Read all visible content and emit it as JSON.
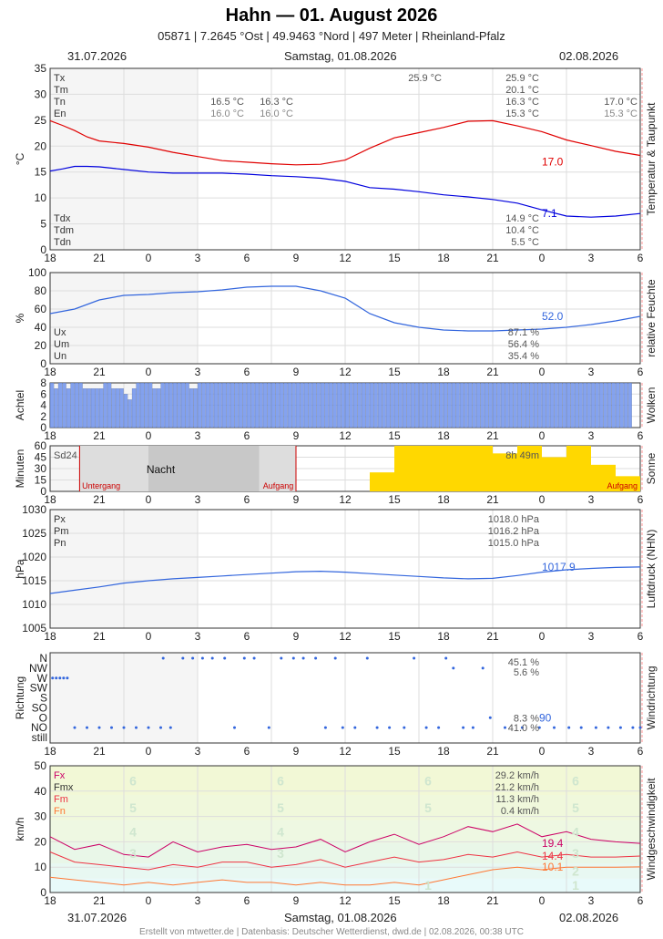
{
  "header": {
    "title": "Hahn  —  01. August 2026",
    "subtitle": "05871  |  7.2645 °Ost  |  49.9463 °Nord  |  497 Meter  |  Rheinland-Pfalz",
    "date_left": "31.07.2026",
    "date_center": "Samstag, 01.08.2026",
    "date_right": "02.08.2026"
  },
  "footer": "Erstellt von mtwetter.de | Datenbasis: Deutscher Wetterdienst, dwd.de | 02.08.2026, 00:38 UTC",
  "colors": {
    "temp": "#e00000",
    "dew": "#0000dd",
    "hum": "#3366dd",
    "cloud": "#7799ee",
    "sun": "#ffd800",
    "gust": "#cc0066",
    "wind": "#ee3344",
    "windmin": "#ff7733",
    "night": "#cccccc"
  },
  "chart_data": [
    {
      "id": "temperature",
      "type": "line",
      "ylabel": "°C",
      "side_label": "Temperatur & Taupunkt",
      "ylim": [
        0,
        35
      ],
      "yticks": [
        0,
        5,
        10,
        15,
        20,
        25,
        30,
        35
      ],
      "xlim": [
        18,
        42
      ],
      "xtick_labels": [
        "18",
        "21",
        "0",
        "3",
        "6",
        "9",
        "12",
        "15",
        "18",
        "21",
        "0",
        "3",
        "6"
      ],
      "series": [
        {
          "name": "temp",
          "x": [
            18,
            18.5,
            19,
            19.5,
            20,
            21,
            22,
            23,
            24,
            25,
            26,
            27,
            28,
            29,
            30,
            31,
            32,
            33,
            34,
            35,
            36,
            37,
            38,
            39,
            40,
            41,
            42
          ],
          "y": [
            24.9,
            24.0,
            23.0,
            21.8,
            21.0,
            20.5,
            19.8,
            18.8,
            18.0,
            17.2,
            16.9,
            16.6,
            16.4,
            16.5,
            17.3,
            19.6,
            21.6,
            22.6,
            23.6,
            24.8,
            24.9,
            23.9,
            22.8,
            21.2,
            20.1,
            19.0,
            18.2
          ]
        },
        {
          "name": "dewpoint",
          "x": [
            18,
            18.5,
            19,
            19.5,
            20,
            21,
            22,
            23,
            24,
            25,
            26,
            27,
            28,
            29,
            30,
            31,
            32,
            33,
            34,
            35,
            36,
            37,
            38,
            39,
            40,
            41,
            42
          ],
          "y": [
            15.2,
            15.6,
            16.1,
            16.1,
            16.0,
            15.5,
            15.0,
            14.8,
            14.8,
            14.8,
            14.6,
            14.3,
            14.1,
            13.8,
            13.2,
            12.0,
            11.7,
            11.2,
            10.6,
            10.2,
            9.7,
            9.0,
            7.7,
            6.5,
            6.3,
            6.5,
            7.0
          ]
        }
      ],
      "labels_left": [
        "Tx",
        "Tm",
        "Tn",
        "En"
      ],
      "labels_left_bottom": [
        "Tdx",
        "Tdm",
        "Tdn"
      ],
      "stats_right": [
        "25.9 °C",
        "20.1 °C",
        "16.3 °C",
        "15.3 °C"
      ],
      "stats_right_dew": [
        "14.9 °C",
        "10.4 °C",
        "5.5 °C"
      ],
      "night_min_values": [
        "16.5 °C",
        "16.0 °C",
        "16.3 °C",
        "16.0 °C"
      ],
      "next_values": [
        "17.0 °C",
        "15.3 °C"
      ],
      "max_marker": "25.9 °C",
      "current_temp": "17.0",
      "current_dew": "7.1"
    },
    {
      "id": "humidity",
      "type": "line",
      "ylabel": "%",
      "side_label": "relative Feuchte",
      "ylim": [
        0,
        100
      ],
      "yticks": [
        0,
        20,
        40,
        60,
        80,
        100
      ],
      "xlim": [
        18,
        42
      ],
      "series": [
        {
          "name": "humidity",
          "x": [
            18,
            19,
            20,
            21,
            22,
            23,
            24,
            25,
            26,
            27,
            28,
            29,
            30,
            31,
            32,
            33,
            34,
            35,
            36,
            37,
            38,
            39,
            40,
            41,
            42
          ],
          "y": [
            55,
            60,
            70,
            75,
            76,
            78,
            79,
            81,
            84,
            85,
            85,
            80,
            72,
            55,
            45,
            40,
            37,
            36,
            36,
            37,
            38,
            40,
            43,
            47,
            52
          ]
        }
      ],
      "labels_left": [
        "Ux",
        "Um",
        "Un"
      ],
      "stats_right": [
        "87.1 %",
        "56.4 %",
        "35.4 %"
      ],
      "current": "52.0"
    },
    {
      "id": "clouds",
      "type": "bar",
      "ylabel": "Achtel",
      "side_label": "Wolken",
      "ylim": [
        0,
        8
      ],
      "yticks": [
        0,
        2,
        4,
        6,
        8
      ],
      "xlim": [
        18,
        42
      ],
      "step": 0.1667,
      "x_start": 18,
      "values": [
        8,
        7,
        8,
        8,
        7,
        8,
        8,
        8,
        7,
        7,
        7,
        7,
        7,
        8,
        8,
        7,
        7,
        7,
        6,
        5,
        7,
        8,
        8,
        8,
        8,
        7,
        7,
        8,
        8,
        8,
        8,
        8,
        8,
        8,
        7,
        7,
        8,
        8,
        8,
        8,
        8,
        8,
        8,
        8,
        8,
        8,
        8,
        8,
        8,
        8,
        8,
        8,
        8,
        8,
        8,
        8,
        8,
        8,
        8,
        8,
        8,
        8,
        8,
        8,
        8,
        8,
        8,
        8,
        8,
        8,
        8,
        8,
        8,
        8,
        8,
        8,
        8,
        8,
        8,
        8,
        8,
        8,
        8,
        8,
        8,
        8,
        8,
        8,
        8,
        8,
        8,
        8,
        8,
        8,
        8,
        8,
        8,
        8,
        8,
        8,
        8,
        8,
        8,
        8,
        8,
        8,
        8,
        8,
        8,
        8,
        8,
        8,
        8,
        8,
        8,
        8,
        8,
        8,
        8,
        8,
        8,
        8,
        8,
        8,
        8,
        8,
        8,
        8,
        8,
        8,
        8,
        8,
        8,
        8,
        8,
        8,
        8,
        8,
        8,
        8,
        8,
        8
      ]
    },
    {
      "id": "sunshine",
      "type": "bar",
      "ylabel": "Minuten",
      "side_label": "Sonne",
      "ylim": [
        0,
        60
      ],
      "yticks": [
        0,
        15,
        30,
        45,
        60
      ],
      "xlim": [
        18,
        42
      ],
      "categories": [
        7,
        8,
        9,
        10,
        11,
        12,
        13,
        14,
        15,
        16,
        17
      ],
      "values": [
        25,
        60,
        60,
        60,
        60,
        50,
        60,
        45,
        60,
        35,
        20
      ],
      "label_sum": "Sd24",
      "sun_total": "8h 49m",
      "night_label": "Nacht",
      "sunset_label": "Untergang",
      "sunrise_label": "Aufgang"
    },
    {
      "id": "pressure",
      "type": "line",
      "ylabel": "hPa",
      "side_label": "Luftdruck (NHN)",
      "ylim": [
        1005,
        1030
      ],
      "yticks": [
        1005,
        1010,
        1015,
        1020,
        1025,
        1030
      ],
      "xlim": [
        18,
        42
      ],
      "series": [
        {
          "name": "pressure",
          "x": [
            18,
            19,
            20,
            21,
            22,
            23,
            24,
            25,
            26,
            27,
            28,
            29,
            30,
            31,
            32,
            33,
            34,
            35,
            36,
            37,
            38,
            39,
            40,
            41,
            42
          ],
          "y": [
            1012.3,
            1013.0,
            1013.7,
            1014.5,
            1015.0,
            1015.4,
            1015.7,
            1016.0,
            1016.3,
            1016.6,
            1016.9,
            1017.0,
            1016.8,
            1016.5,
            1016.2,
            1015.9,
            1015.6,
            1015.4,
            1015.5,
            1016.1,
            1016.8,
            1017.3,
            1017.6,
            1017.8,
            1017.9
          ]
        }
      ],
      "labels_left": [
        "Px",
        "Pm",
        "Pn"
      ],
      "stats_right": [
        "1018.0 hPa",
        "1016.2 hPa",
        "1015.0 hPa"
      ],
      "current": "1017.9"
    },
    {
      "id": "wind_direction",
      "type": "scatter",
      "ylabel": "Richtung",
      "side_label": "Windrichtung",
      "categories": [
        "still",
        "NO",
        "O",
        "SO",
        "S",
        "SW",
        "W",
        "NW",
        "N"
      ],
      "points": [
        [
          18.1,
          6
        ],
        [
          18.25,
          6
        ],
        [
          18.4,
          6
        ],
        [
          18.55,
          6
        ],
        [
          18.7,
          6
        ],
        [
          19,
          1
        ],
        [
          19.5,
          1
        ],
        [
          20,
          1
        ],
        [
          20.5,
          1
        ],
        [
          21,
          1
        ],
        [
          21.5,
          1
        ],
        [
          22,
          1
        ],
        [
          22.5,
          1
        ],
        [
          22.6,
          8
        ],
        [
          22.9,
          1
        ],
        [
          23.4,
          8
        ],
        [
          23.8,
          8
        ],
        [
          24.2,
          8
        ],
        [
          24.6,
          8
        ],
        [
          25.1,
          8
        ],
        [
          25.5,
          1
        ],
        [
          25.9,
          8
        ],
        [
          26.3,
          8
        ],
        [
          26.9,
          1
        ],
        [
          27.4,
          8
        ],
        [
          27.9,
          8
        ],
        [
          28.3,
          8
        ],
        [
          28.8,
          8
        ],
        [
          29.2,
          1
        ],
        [
          29.6,
          8
        ],
        [
          29.9,
          1
        ],
        [
          30.4,
          1
        ],
        [
          30.9,
          8
        ],
        [
          31.3,
          1
        ],
        [
          31.8,
          1
        ],
        [
          32.4,
          1
        ],
        [
          32.8,
          8
        ],
        [
          33.3,
          1
        ],
        [
          33.8,
          1
        ],
        [
          34.1,
          8
        ],
        [
          34.4,
          7
        ],
        [
          34.8,
          1
        ],
        [
          35.2,
          1
        ],
        [
          35.6,
          7
        ],
        [
          35.9,
          2
        ],
        [
          36.5,
          1
        ],
        [
          37.2,
          1
        ],
        [
          37.9,
          1
        ],
        [
          38.5,
          1
        ],
        [
          39.1,
          1
        ],
        [
          39.6,
          1
        ],
        [
          40.2,
          1
        ],
        [
          40.7,
          1
        ],
        [
          41.2,
          1
        ],
        [
          41.7,
          1
        ],
        [
          42,
          1
        ]
      ],
      "stats_right": [
        "45.1 %",
        "5.6 %",
        "8.3 %",
        "41.0 %"
      ],
      "current": "90"
    },
    {
      "id": "wind_speed",
      "type": "line",
      "ylabel": "km/h",
      "side_label": "Windgeschwindigkeit",
      "ylim": [
        0,
        50
      ],
      "yticks": [
        0,
        10,
        20,
        30,
        40,
        50
      ],
      "xlim": [
        18,
        42
      ],
      "beaufort": [
        "1",
        "2",
        "3",
        "4",
        "5",
        "6"
      ],
      "series": [
        {
          "name": "gust",
          "x": [
            18,
            19,
            20,
            21,
            22,
            23,
            24,
            25,
            26,
            27,
            28,
            29,
            30,
            31,
            32,
            33,
            34,
            35,
            36,
            37,
            38,
            39,
            40,
            41,
            42
          ],
          "y": [
            22,
            17,
            19,
            15,
            14,
            20,
            16,
            18,
            19,
            17,
            18,
            21,
            16,
            20,
            23,
            19,
            22,
            26,
            24,
            27,
            22,
            24,
            21,
            20,
            19.4
          ]
        },
        {
          "name": "wind_max",
          "x": [
            18,
            19,
            20,
            21,
            22,
            23,
            24,
            25,
            26,
            27,
            28,
            29,
            30,
            31,
            32,
            33,
            34,
            35,
            36,
            37,
            38,
            39,
            40,
            41,
            42
          ],
          "y": [
            16,
            12,
            11,
            10,
            9,
            11,
            10,
            12,
            12,
            10,
            11,
            13,
            10,
            12,
            14,
            12,
            13,
            15,
            14,
            16,
            14,
            15,
            14,
            14,
            14.4
          ]
        },
        {
          "name": "wind_mean",
          "x": [
            18,
            19,
            20,
            21,
            22,
            23,
            24,
            25,
            26,
            27,
            28,
            29,
            30,
            31,
            32,
            33,
            34,
            35,
            36,
            37,
            38,
            39,
            40,
            41,
            42
          ],
          "y": [
            6,
            5,
            4,
            3,
            4,
            3,
            4,
            5,
            4,
            4,
            3,
            4,
            3,
            3,
            4,
            3,
            5,
            7,
            9,
            10,
            9,
            10,
            10,
            10,
            10.1
          ]
        }
      ],
      "labels_left": [
        "Fx",
        "Fmx",
        "Fm",
        "Fn"
      ],
      "stats_right": [
        "29.2 km/h",
        "21.2 km/h",
        "11.3 km/h",
        "0.4 km/h"
      ],
      "current_gust": "19.4",
      "current_max": "14.4",
      "current_mean": "10.1"
    }
  ]
}
